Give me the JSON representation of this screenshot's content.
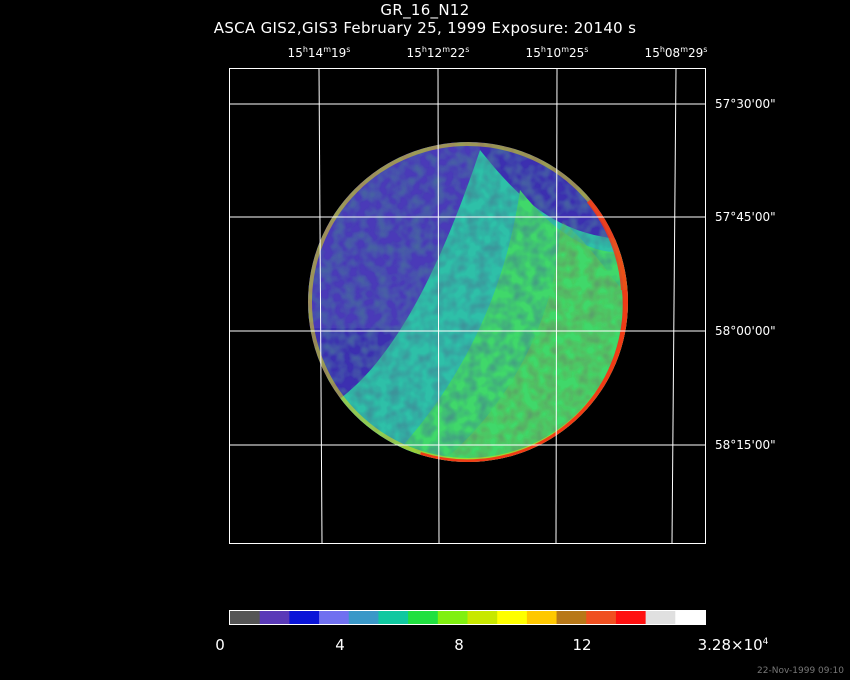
{
  "header": {
    "title": "GR_16_N12",
    "subtitle": "ASCA GIS2,GIS3 February 25, 1999 Exposure: 20140 s"
  },
  "ra_labels": [
    {
      "h": "15",
      "m": "14",
      "s": "19"
    },
    {
      "h": "15",
      "m": "12",
      "s": "22"
    },
    {
      "h": "15",
      "m": "10",
      "s": "25"
    },
    {
      "h": "15",
      "m": "08",
      "s": "29"
    }
  ],
  "dec_labels": [
    "57°30'00\"",
    "57°45'00\"",
    "58°00'00\"",
    "58°15'00\""
  ],
  "colorbar": {
    "colors": [
      "#555555",
      "#5a3ab8",
      "#0a14d8",
      "#7070f0",
      "#3a98c8",
      "#10c8a0",
      "#20e040",
      "#80f010",
      "#c8e800",
      "#ffff00",
      "#ffc800",
      "#b87818",
      "#f05020",
      "#ff1010",
      "#e0e0e0",
      "#ffffff"
    ],
    "labels": [
      "0",
      "4",
      "8",
      "12"
    ],
    "max_label_base": "3.28×10",
    "max_label_exp": "4"
  },
  "footer": {
    "timestamp": "22-Nov-1999 09:10"
  }
}
